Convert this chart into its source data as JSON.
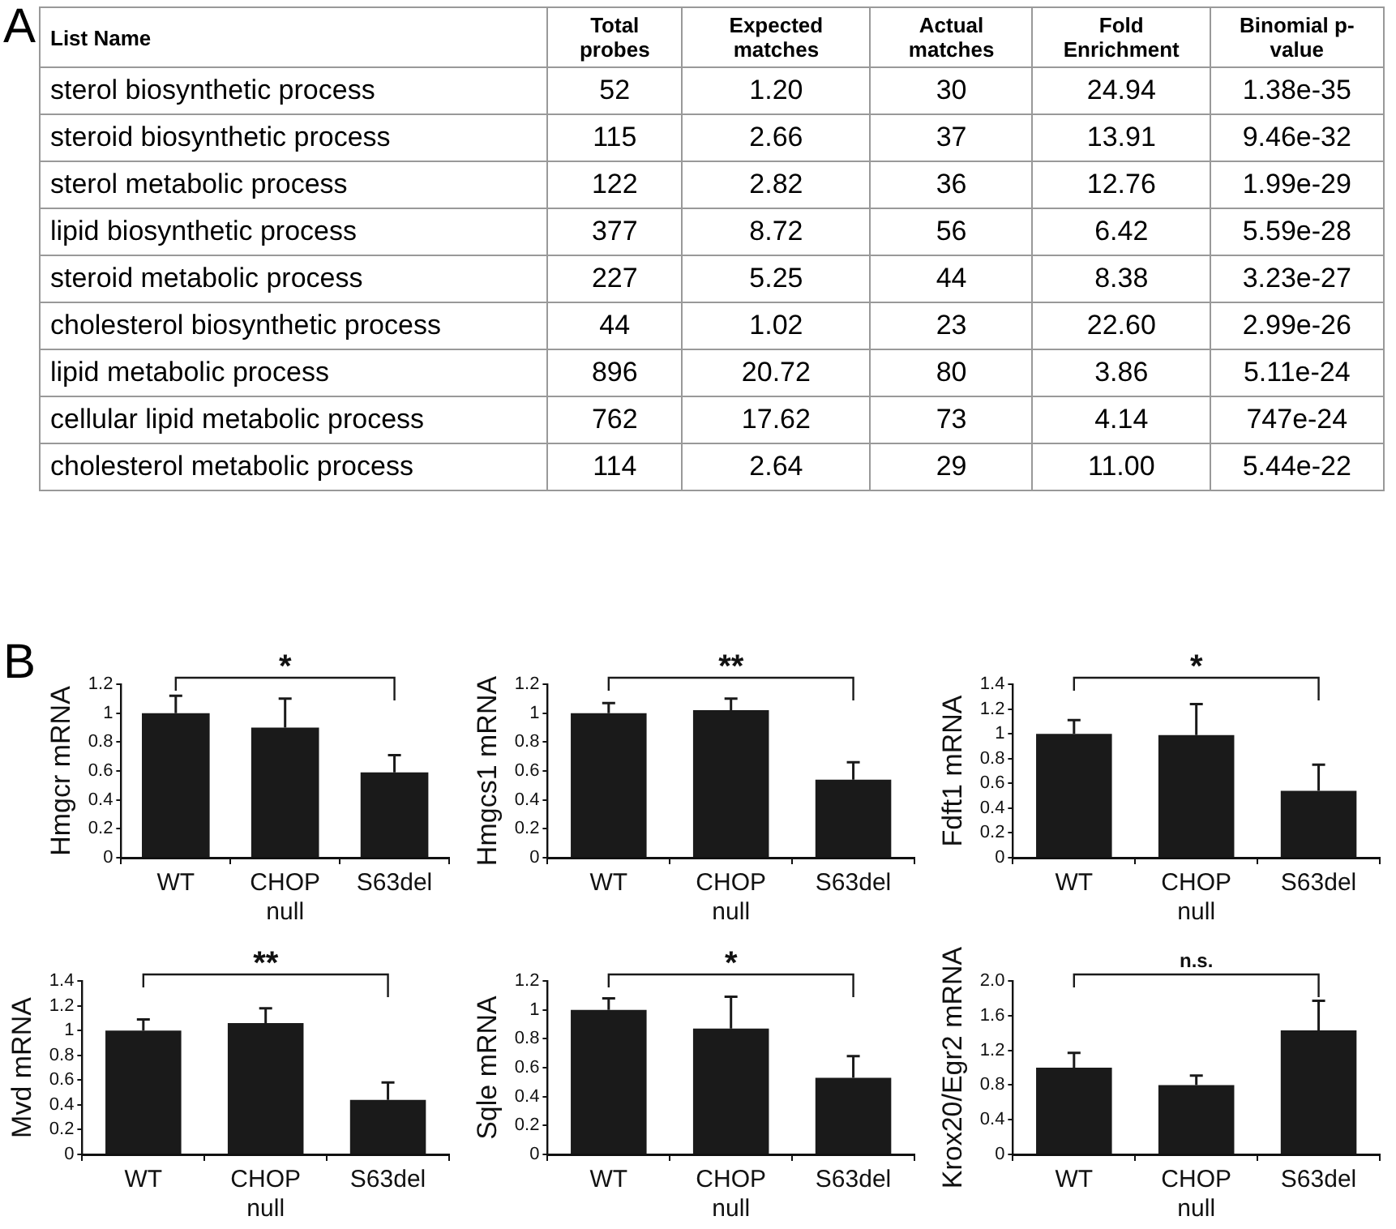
{
  "chart_data": [
    {
      "type": "other",
      "title": "A",
      "categories": [
        "List Name",
        "Total probes",
        "Expected matches",
        "Actual matches",
        "Fold Enrichment",
        "Binomial p-value"
      ],
      "y_categories": [
        "sterol biosynthetic process",
        "steroid biosynthetic process",
        "sterol metabolic process",
        "lipid biosynthetic process",
        "steroid metabolic process",
        "cholesterol biosynthetic process",
        "lipid metabolic process",
        "cellular lipid metabolic process",
        "cholesterol metabolic process"
      ],
      "cell_labels": [
        [
          "52",
          "1.20",
          "30",
          "24.94",
          "1.38e-35"
        ],
        [
          "115",
          "2.66",
          "37",
          "13.91",
          "9.46e-32"
        ],
        [
          "122",
          "2.82",
          "36",
          "12.76",
          "1.99e-29"
        ],
        [
          "377",
          "8.72",
          "56",
          "6.42",
          "5.59e-28"
        ],
        [
          "227",
          "5.25",
          "44",
          "8.38",
          "3.23e-27"
        ],
        [
          "44",
          "1.02",
          "23",
          "22.60",
          "2.99e-26"
        ],
        [
          "896",
          "20.72",
          "80",
          "3.86",
          "5.11e-24"
        ],
        [
          "762",
          "17.62",
          "73",
          "4.14",
          "747e-24"
        ],
        [
          "114",
          "2.64",
          "29",
          "11.00",
          "5.44e-22"
        ]
      ]
    },
    {
      "type": "bar",
      "title": "B",
      "ylabel": "Hmgcr mRNA",
      "categories": [
        "WT",
        "CHOP null",
        "S63del"
      ],
      "values": [
        1.0,
        0.9,
        0.59
      ],
      "errors": [
        [
          1.0,
          1.12
        ],
        [
          0.9,
          1.1
        ],
        [
          0.59,
          0.71
        ]
      ],
      "color": "#1a1a1a",
      "ylim": [
        0,
        1.2
      ],
      "yticks": [
        0,
        0.2,
        0.4,
        0.6,
        0.8,
        1,
        1.2
      ],
      "annotations": [
        "*"
      ]
    },
    {
      "type": "bar",
      "ylabel": "Hmgcs1 mRNA",
      "categories": [
        "WT",
        "CHOP null",
        "S63del"
      ],
      "values": [
        1.0,
        1.02,
        0.54
      ],
      "errors": [
        [
          1.0,
          1.07
        ],
        [
          1.02,
          1.1
        ],
        [
          0.54,
          0.66
        ]
      ],
      "color": "#1a1a1a",
      "ylim": [
        0,
        1.2
      ],
      "yticks": [
        0,
        0.2,
        0.4,
        0.6,
        0.8,
        1,
        1.2
      ],
      "annotations": [
        "**"
      ]
    },
    {
      "type": "bar",
      "ylabel": "Fdft1 mRNA",
      "categories": [
        "WT",
        "CHOP null",
        "S63del"
      ],
      "values": [
        1.0,
        0.99,
        0.54
      ],
      "errors": [
        [
          1.0,
          1.11
        ],
        [
          0.99,
          1.24
        ],
        [
          0.54,
          0.75
        ]
      ],
      "color": "#1a1a1a",
      "ylim": [
        0,
        1.4
      ],
      "yticks": [
        0,
        0.2,
        0.4,
        0.6,
        0.8,
        1,
        1.2,
        1.4
      ],
      "annotations": [
        "*"
      ]
    },
    {
      "type": "bar",
      "ylabel": "Mvd mRNA",
      "categories": [
        "WT",
        "CHOP null",
        "S63del"
      ],
      "values": [
        1.0,
        1.06,
        0.44
      ],
      "errors": [
        [
          1.0,
          1.09
        ],
        [
          1.06,
          1.18
        ],
        [
          0.44,
          0.58
        ]
      ],
      "color": "#1a1a1a",
      "ylim": [
        0,
        1.4
      ],
      "yticks": [
        0,
        0.2,
        0.4,
        0.6,
        0.8,
        1,
        1.2,
        1.4
      ],
      "annotations": [
        "**"
      ]
    },
    {
      "type": "bar",
      "ylabel": "Sqle mRNA",
      "categories": [
        "WT",
        "CHOP null",
        "S63del"
      ],
      "values": [
        1.0,
        0.87,
        0.53
      ],
      "errors": [
        [
          1.0,
          1.08
        ],
        [
          0.87,
          1.09
        ],
        [
          0.53,
          0.68
        ]
      ],
      "color": "#1a1a1a",
      "ylim": [
        0,
        1.2
      ],
      "yticks": [
        0,
        0.2,
        0.4,
        0.6,
        0.8,
        1,
        1.2
      ],
      "annotations": [
        "*"
      ]
    },
    {
      "type": "bar",
      "ylabel": "Krox20/Egr2 mRNA",
      "categories": [
        "WT",
        "CHOP null",
        "S63del"
      ],
      "values": [
        1.0,
        0.8,
        1.43
      ],
      "errors": [
        [
          1.0,
          1.17
        ],
        [
          0.8,
          0.91
        ],
        [
          1.43,
          1.77
        ]
      ],
      "color": "#1a1a1a",
      "ylim": [
        0,
        2
      ],
      "yticks": [
        0,
        0.4,
        0.8,
        1.2,
        1.6,
        {
          "value": 2,
          "label": "2.0"
        }
      ],
      "annotations": [
        "n.s."
      ]
    }
  ]
}
